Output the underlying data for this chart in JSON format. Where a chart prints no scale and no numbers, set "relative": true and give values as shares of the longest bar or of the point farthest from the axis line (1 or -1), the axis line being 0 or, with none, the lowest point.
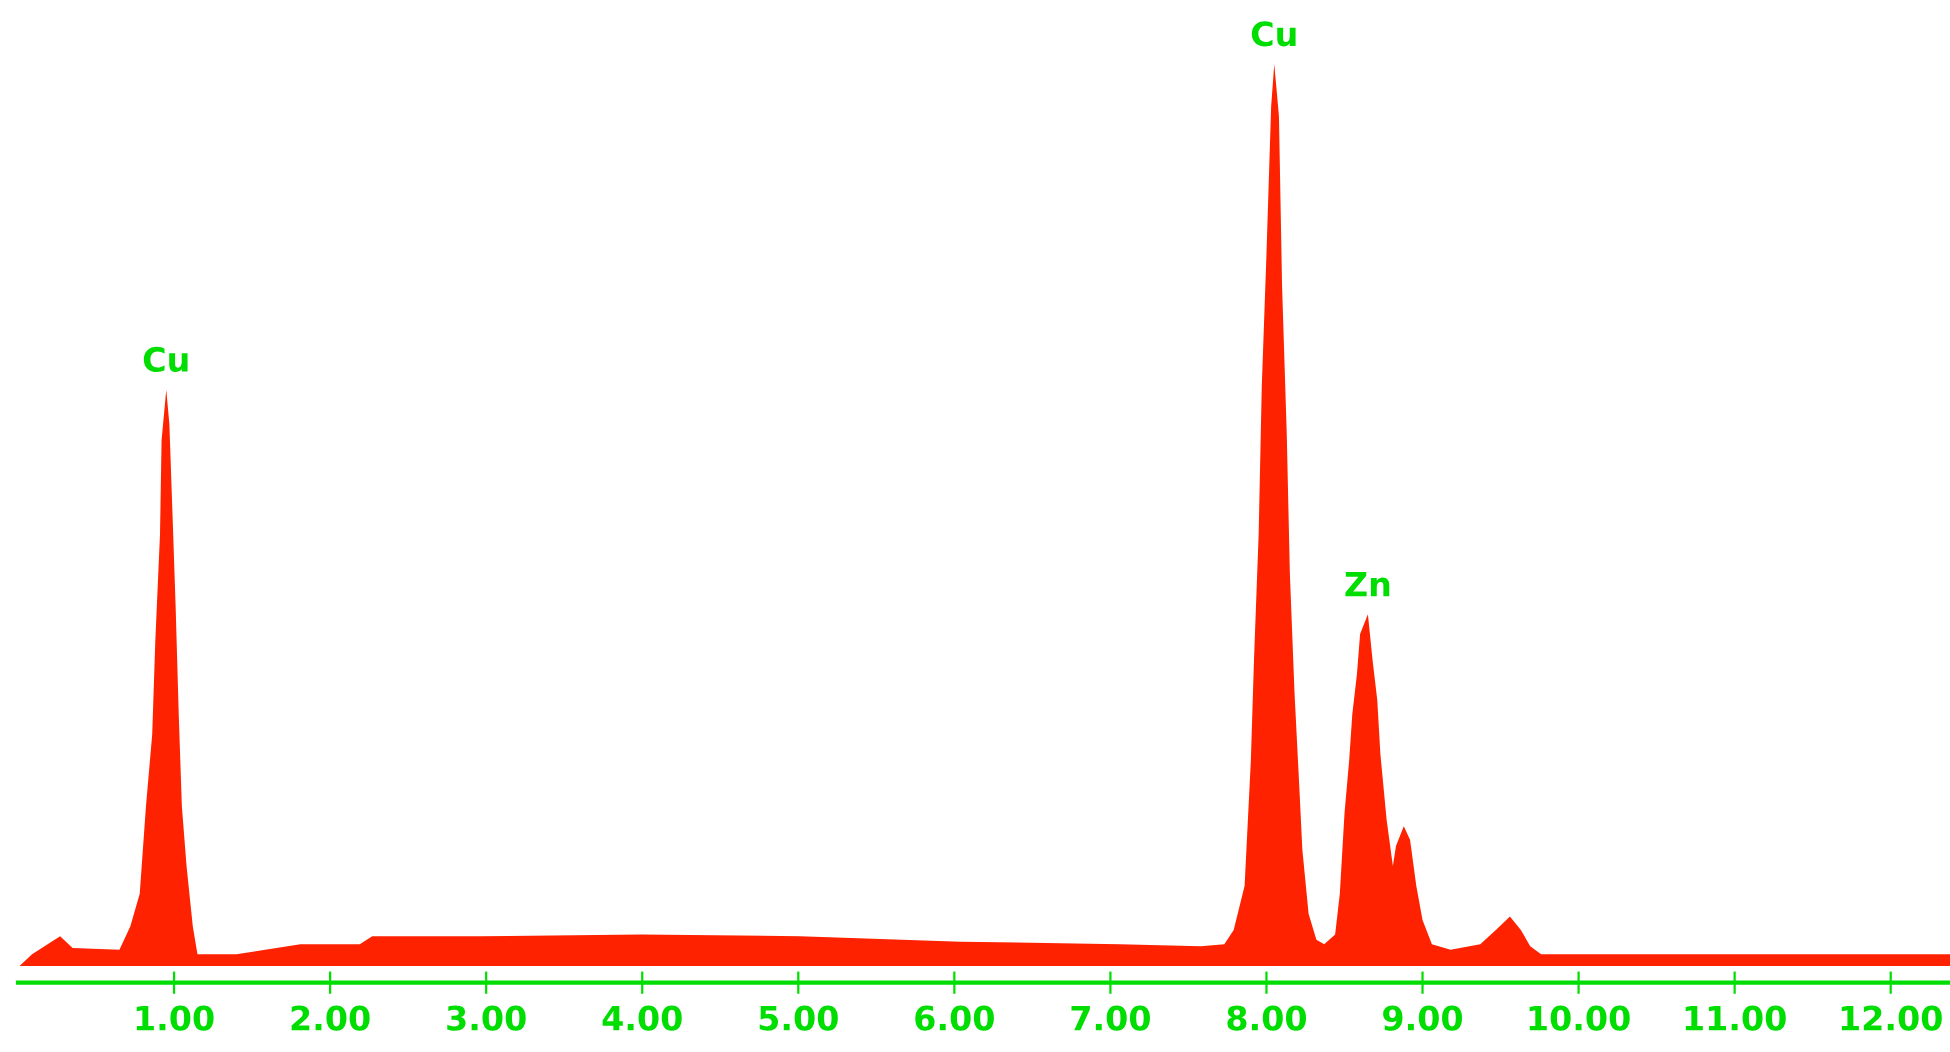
{
  "chart_data": {
    "type": "area",
    "relative": true,
    "grid": false,
    "legend": false,
    "x": [
      0.01,
      0.09,
      0.27,
      0.35,
      0.65,
      0.72,
      0.78,
      0.82,
      0.86,
      0.88,
      0.91,
      0.92,
      0.95,
      0.97,
      0.99,
      1.01,
      1.03,
      1.05,
      1.08,
      1.12,
      1.15,
      1.4,
      1.81,
      2.19,
      2.27,
      2.96,
      3.99,
      5.01,
      6.04,
      7.06,
      7.58,
      7.73,
      7.79,
      7.86,
      7.9,
      7.92,
      7.95,
      7.97,
      8.0,
      8.03,
      8.05,
      8.08,
      8.1,
      8.13,
      8.15,
      8.18,
      8.21,
      8.23,
      8.27,
      8.32,
      8.37,
      8.44,
      8.47,
      8.5,
      8.53,
      8.55,
      8.58,
      8.6,
      8.65,
      8.68,
      8.71,
      8.73,
      8.77,
      8.81,
      8.83,
      8.88,
      8.92,
      8.96,
      9.0,
      9.06,
      9.18,
      9.37,
      9.47,
      9.56,
      9.63,
      9.69,
      9.76,
      12.38
    ],
    "series": [
      {
        "color": "#ff2200",
        "values": [
          0.0,
          0.013,
          0.033,
          0.02,
          0.018,
          0.044,
          0.08,
          0.177,
          0.257,
          0.361,
          0.479,
          0.583,
          0.639,
          0.601,
          0.501,
          0.399,
          0.279,
          0.177,
          0.111,
          0.044,
          0.013,
          0.013,
          0.024,
          0.024,
          0.033,
          0.033,
          0.035,
          0.033,
          0.027,
          0.024,
          0.022,
          0.024,
          0.04,
          0.089,
          0.228,
          0.339,
          0.479,
          0.643,
          0.789,
          0.953,
          1.0,
          0.942,
          0.754,
          0.59,
          0.435,
          0.302,
          0.2,
          0.129,
          0.058,
          0.029,
          0.024,
          0.035,
          0.08,
          0.169,
          0.228,
          0.279,
          0.324,
          0.368,
          0.39,
          0.339,
          0.295,
          0.235,
          0.162,
          0.111,
          0.133,
          0.155,
          0.14,
          0.089,
          0.051,
          0.024,
          0.018,
          0.024,
          0.04,
          0.055,
          0.04,
          0.022,
          0.013,
          0.013
        ]
      }
    ],
    "xlim": [
      0,
      12.38
    ],
    "xticks": [
      {
        "value": 1,
        "label": "1.00"
      },
      {
        "value": 2,
        "label": "2.00"
      },
      {
        "value": 3,
        "label": "3.00"
      },
      {
        "value": 4,
        "label": "4.00"
      },
      {
        "value": 5,
        "label": "5.00"
      },
      {
        "value": 6,
        "label": "6.00"
      },
      {
        "value": 7,
        "label": "7.00"
      },
      {
        "value": 8,
        "label": "8.00"
      },
      {
        "value": 9,
        "label": "9.00"
      },
      {
        "value": 10,
        "label": "10.00"
      },
      {
        "value": 11,
        "label": "11.00"
      },
      {
        "value": 12,
        "label": "12.00"
      }
    ],
    "annotations": [
      {
        "text": "Cu",
        "x": 0.95,
        "y": 0.639
      },
      {
        "text": "Cu",
        "x": 8.05,
        "y": 1.0
      },
      {
        "text": "Zn",
        "x": 8.65,
        "y": 0.39
      }
    ]
  }
}
